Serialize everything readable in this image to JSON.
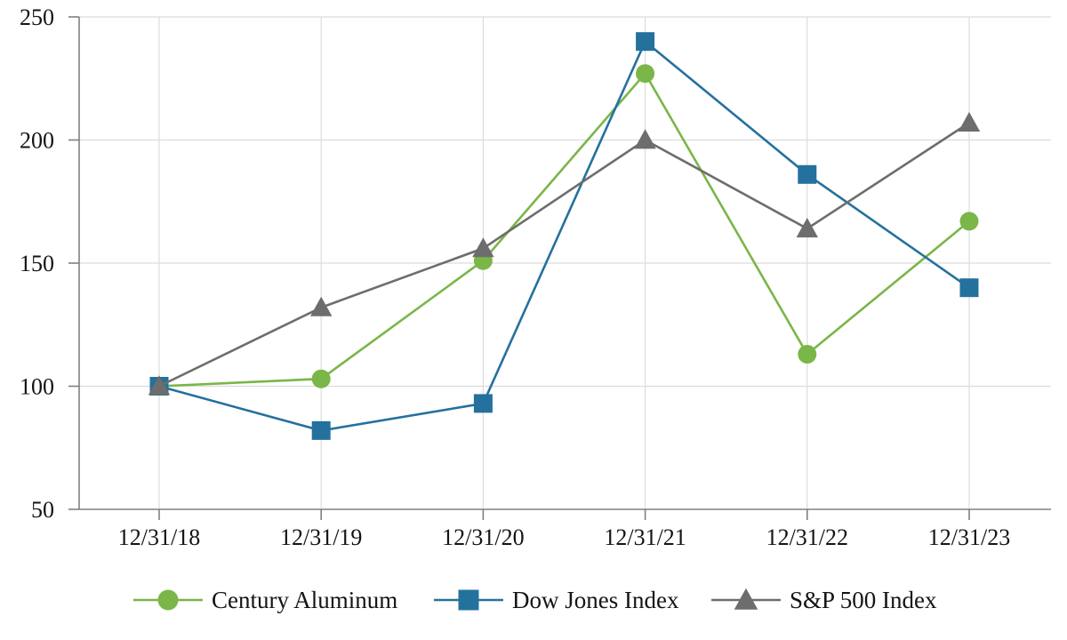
{
  "chart_data": {
    "type": "line",
    "title": "",
    "xlabel": "",
    "ylabel": "",
    "categories": [
      "12/31/18",
      "12/31/19",
      "12/31/20",
      "12/31/21",
      "12/31/22",
      "12/31/23"
    ],
    "series": [
      {
        "name": "Century Aluminum",
        "marker": "circle",
        "color": "#7ab648",
        "values": [
          100,
          103,
          151,
          227,
          113,
          167
        ]
      },
      {
        "name": "Dow Jones Index",
        "marker": "square",
        "color": "#24719e",
        "values": [
          100,
          82,
          93,
          240,
          186,
          140
        ]
      },
      {
        "name": "S&P 500 Index",
        "marker": "triangle",
        "color": "#6d6d6d",
        "values": [
          100,
          132,
          156,
          200,
          164,
          207
        ]
      }
    ],
    "ylim": [
      50,
      250
    ],
    "yticks": [
      50,
      100,
      150,
      200,
      250
    ],
    "grid": true,
    "legend_position": "bottom"
  },
  "colors": {
    "axis": "#808080",
    "gridline": "#dcdcdc",
    "text": "#141414",
    "background": "#ffffff"
  }
}
